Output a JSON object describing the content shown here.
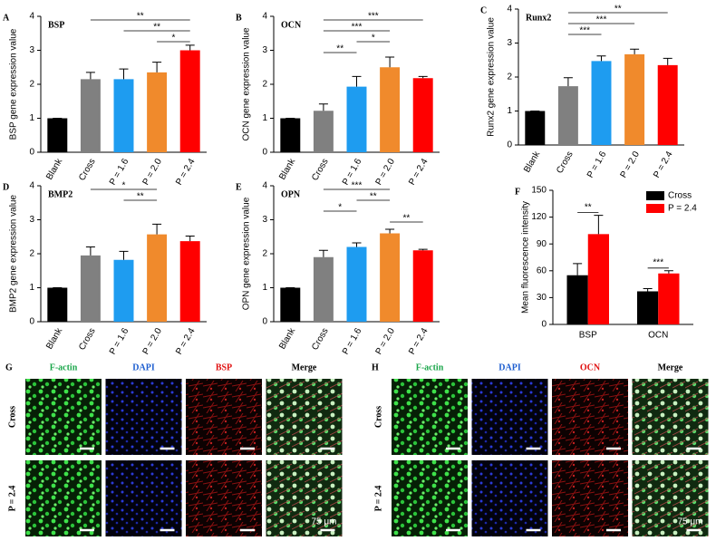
{
  "chart_data": [
    {
      "type": "bar",
      "panel": "A",
      "title": "BSP",
      "y_label": "BSP gene expression value",
      "categories": [
        "Blank",
        "Cross",
        "P = 1.6",
        "P = 2.0",
        "P = 2.4"
      ],
      "values": [
        1,
        2.15,
        2.15,
        2.35,
        3.0
      ],
      "errors": [
        0,
        0.2,
        0.3,
        0.3,
        0.15
      ],
      "colors": [
        "#000000",
        "#808080",
        "#1e9cf0",
        "#f08a2c",
        "#ff0000"
      ],
      "ylim": [
        0,
        4
      ],
      "yticks": [
        0,
        1,
        2,
        3,
        4
      ],
      "annotations": [
        {
          "label": "**",
          "between": [
            "Cross",
            "P = 2.4"
          ]
        },
        {
          "label": "**",
          "between": [
            "P = 1.6",
            "P = 2.4"
          ]
        },
        {
          "label": "*",
          "between": [
            "P = 2.0",
            "P = 2.4"
          ]
        }
      ]
    },
    {
      "type": "bar",
      "panel": "B",
      "title": "OCN",
      "y_label": "OCN gene expression value",
      "categories": [
        "Blank",
        "Cross",
        "P = 1.6",
        "P = 2.0",
        "P = 2.4"
      ],
      "values": [
        1,
        1.22,
        1.93,
        2.5,
        2.18
      ],
      "errors": [
        0,
        0.2,
        0.3,
        0.3,
        0.05
      ],
      "colors": [
        "#000000",
        "#808080",
        "#1e9cf0",
        "#f08a2c",
        "#ff0000"
      ],
      "ylim": [
        0,
        4
      ],
      "yticks": [
        0,
        1,
        2,
        3,
        4
      ],
      "annotations": [
        {
          "label": "***",
          "between": [
            "Cross",
            "P = 2.4"
          ]
        },
        {
          "label": "***",
          "between": [
            "Cross",
            "P = 2.0"
          ]
        },
        {
          "label": "*",
          "between": [
            "P = 1.6",
            "P = 2.0"
          ]
        },
        {
          "label": "**",
          "between": [
            "Cross",
            "P = 1.6"
          ]
        }
      ]
    },
    {
      "type": "bar",
      "panel": "C",
      "title": "Runx2",
      "y_label": "Runx2 gene expression value",
      "categories": [
        "Blank",
        "Cross",
        "P = 1.6",
        "P = 2.0",
        "P = 2.4"
      ],
      "values": [
        1,
        1.73,
        2.47,
        2.67,
        2.35
      ],
      "errors": [
        0,
        0.25,
        0.15,
        0.15,
        0.2
      ],
      "colors": [
        "#000000",
        "#808080",
        "#1e9cf0",
        "#f08a2c",
        "#ff0000"
      ],
      "ylim": [
        0,
        4
      ],
      "yticks": [
        0,
        1,
        2,
        3,
        4
      ],
      "annotations": [
        {
          "label": "**",
          "between": [
            "Cross",
            "P = 2.4"
          ]
        },
        {
          "label": "***",
          "between": [
            "Cross",
            "P = 2.0"
          ]
        },
        {
          "label": "***",
          "between": [
            "Cross",
            "P = 1.6"
          ]
        }
      ]
    },
    {
      "type": "bar",
      "panel": "D",
      "title": "BMP2",
      "y_label": "BMP2 gene expression value",
      "categories": [
        "Blank",
        "Cross",
        "P = 1.6",
        "P = 2.0",
        "P = 2.4"
      ],
      "values": [
        1,
        1.95,
        1.82,
        2.57,
        2.37
      ],
      "errors": [
        0,
        0.25,
        0.25,
        0.3,
        0.15
      ],
      "colors": [
        "#000000",
        "#808080",
        "#1e9cf0",
        "#f08a2c",
        "#ff0000"
      ],
      "ylim": [
        0,
        4
      ],
      "yticks": [
        0,
        1,
        2,
        3,
        4
      ],
      "annotations": [
        {
          "label": "*",
          "between": [
            "Cross",
            "P = 2.0"
          ]
        },
        {
          "label": "**",
          "between": [
            "P = 1.6",
            "P = 2.0"
          ]
        }
      ]
    },
    {
      "type": "bar",
      "panel": "E",
      "title": "OPN",
      "y_label": "OPN gene expression value",
      "categories": [
        "Blank",
        "Cross",
        "P = 1.6",
        "P = 2.0",
        "P = 2.4"
      ],
      "values": [
        1,
        1.9,
        2.2,
        2.6,
        2.1
      ],
      "errors": [
        0,
        0.2,
        0.12,
        0.12,
        0.03
      ],
      "colors": [
        "#000000",
        "#808080",
        "#1e9cf0",
        "#f08a2c",
        "#ff0000"
      ],
      "ylim": [
        0,
        4
      ],
      "yticks": [
        0,
        1,
        2,
        3,
        4
      ],
      "annotations": [
        {
          "label": "***",
          "between": [
            "Cross",
            "P = 2.0"
          ]
        },
        {
          "label": "**",
          "between": [
            "P = 1.6",
            "P = 2.0"
          ]
        },
        {
          "label": "*",
          "between": [
            "Cross",
            "P = 1.6"
          ]
        },
        {
          "label": "**",
          "between": [
            "P = 2.0",
            "P = 2.4"
          ]
        }
      ]
    },
    {
      "type": "grouped_bar",
      "panel": "F",
      "y_label": "Mean fluorescence intensity",
      "categories": [
        "BSP",
        "OCN"
      ],
      "series": [
        {
          "name": "Cross",
          "color": "#000000",
          "values": [
            55,
            37
          ],
          "errors": [
            13,
            3
          ]
        },
        {
          "name": "P = 2.4",
          "color": "#ff0000",
          "values": [
            101,
            57
          ],
          "errors": [
            21,
            3
          ]
        }
      ],
      "ylim": [
        0,
        150
      ],
      "yticks": [
        0,
        30,
        60,
        90,
        120,
        150
      ],
      "legend": "upper right",
      "annotations": [
        {
          "label": "**",
          "category": "BSP"
        },
        {
          "label": "***",
          "category": "OCN"
        }
      ]
    }
  ],
  "images": [
    {
      "panel": "G",
      "columns": [
        "F-actin",
        "DAPI",
        "BSP",
        "Merge"
      ],
      "rows": [
        "Cross",
        "P = 2.4"
      ],
      "scale_bar": "75 μm"
    },
    {
      "panel": "H",
      "columns": [
        "F-actin",
        "DAPI",
        "OCN",
        "Merge"
      ],
      "rows": [
        "Cross",
        "P = 2.4"
      ],
      "scale_bar": "75 μm"
    }
  ]
}
